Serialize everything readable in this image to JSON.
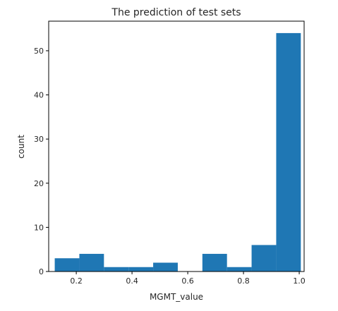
{
  "chart_data": {
    "type": "bar",
    "title": "The prediction of test sets",
    "xlabel": "MGMT_value",
    "ylabel": "count",
    "xlim": [
      0.101,
      1.0176
    ],
    "ylim": [
      0,
      56.7
    ],
    "xticks": [
      0.2,
      0.4,
      0.6,
      0.8,
      1.0
    ],
    "xtick_labels": [
      "0.2",
      "0.4",
      "0.6",
      "0.8",
      "1.0"
    ],
    "yticks": [
      0,
      10,
      20,
      30,
      40,
      50
    ],
    "ytick_labels": [
      "0",
      "10",
      "20",
      "30",
      "40",
      "50"
    ],
    "bin_edges": [
      0.1227,
      0.211,
      0.2993,
      0.3876,
      0.4759,
      0.5642,
      0.6525,
      0.7408,
      0.8291,
      0.9174,
      1.0057
    ],
    "values": [
      3,
      4,
      1,
      1,
      2,
      0,
      4,
      1,
      6,
      54
    ],
    "bar_color": "#1f77b4",
    "grid": false,
    "legend": "none"
  }
}
